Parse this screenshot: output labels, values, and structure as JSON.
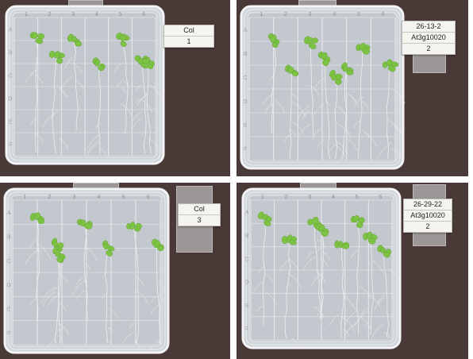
{
  "colors": {
    "background": "#4a3a37",
    "plate": "#cfd4d8",
    "grid": "#e9ecee",
    "leaf": "#7cc243",
    "root": "#eef0ee"
  },
  "plates": [
    {
      "label_lines": [
        "Col",
        "1"
      ],
      "column_numbers": [
        "1",
        "2",
        "3",
        "4",
        "5",
        "6"
      ],
      "row_letters": [
        "A",
        "B",
        "C",
        "D",
        "E",
        "F"
      ],
      "seedling_count": 7
    },
    {
      "label_lines": [
        "26-13-2",
        "At3g10020",
        "2"
      ],
      "column_numbers": [
        "1",
        "2",
        "3",
        "4",
        "5",
        "6"
      ],
      "row_letters": [
        "A",
        "B",
        "C",
        "D",
        "E",
        "F"
      ],
      "seedling_count": 8
    },
    {
      "label_lines": [
        "Col",
        "3"
      ],
      "column_numbers": [
        "1",
        "2",
        "3",
        "4",
        "5",
        "6"
      ],
      "row_letters": [
        "A",
        "B",
        "C",
        "D",
        "E",
        "F"
      ],
      "seedling_count": 7
    },
    {
      "label_lines": [
        "26-29-22",
        "At3g10020",
        "2"
      ],
      "column_numbers": [
        "1",
        "2",
        "3",
        "4",
        "5",
        "6"
      ],
      "row_letters": [
        "A",
        "B",
        "C",
        "D",
        "E",
        "F"
      ],
      "seedling_count": 8
    }
  ]
}
